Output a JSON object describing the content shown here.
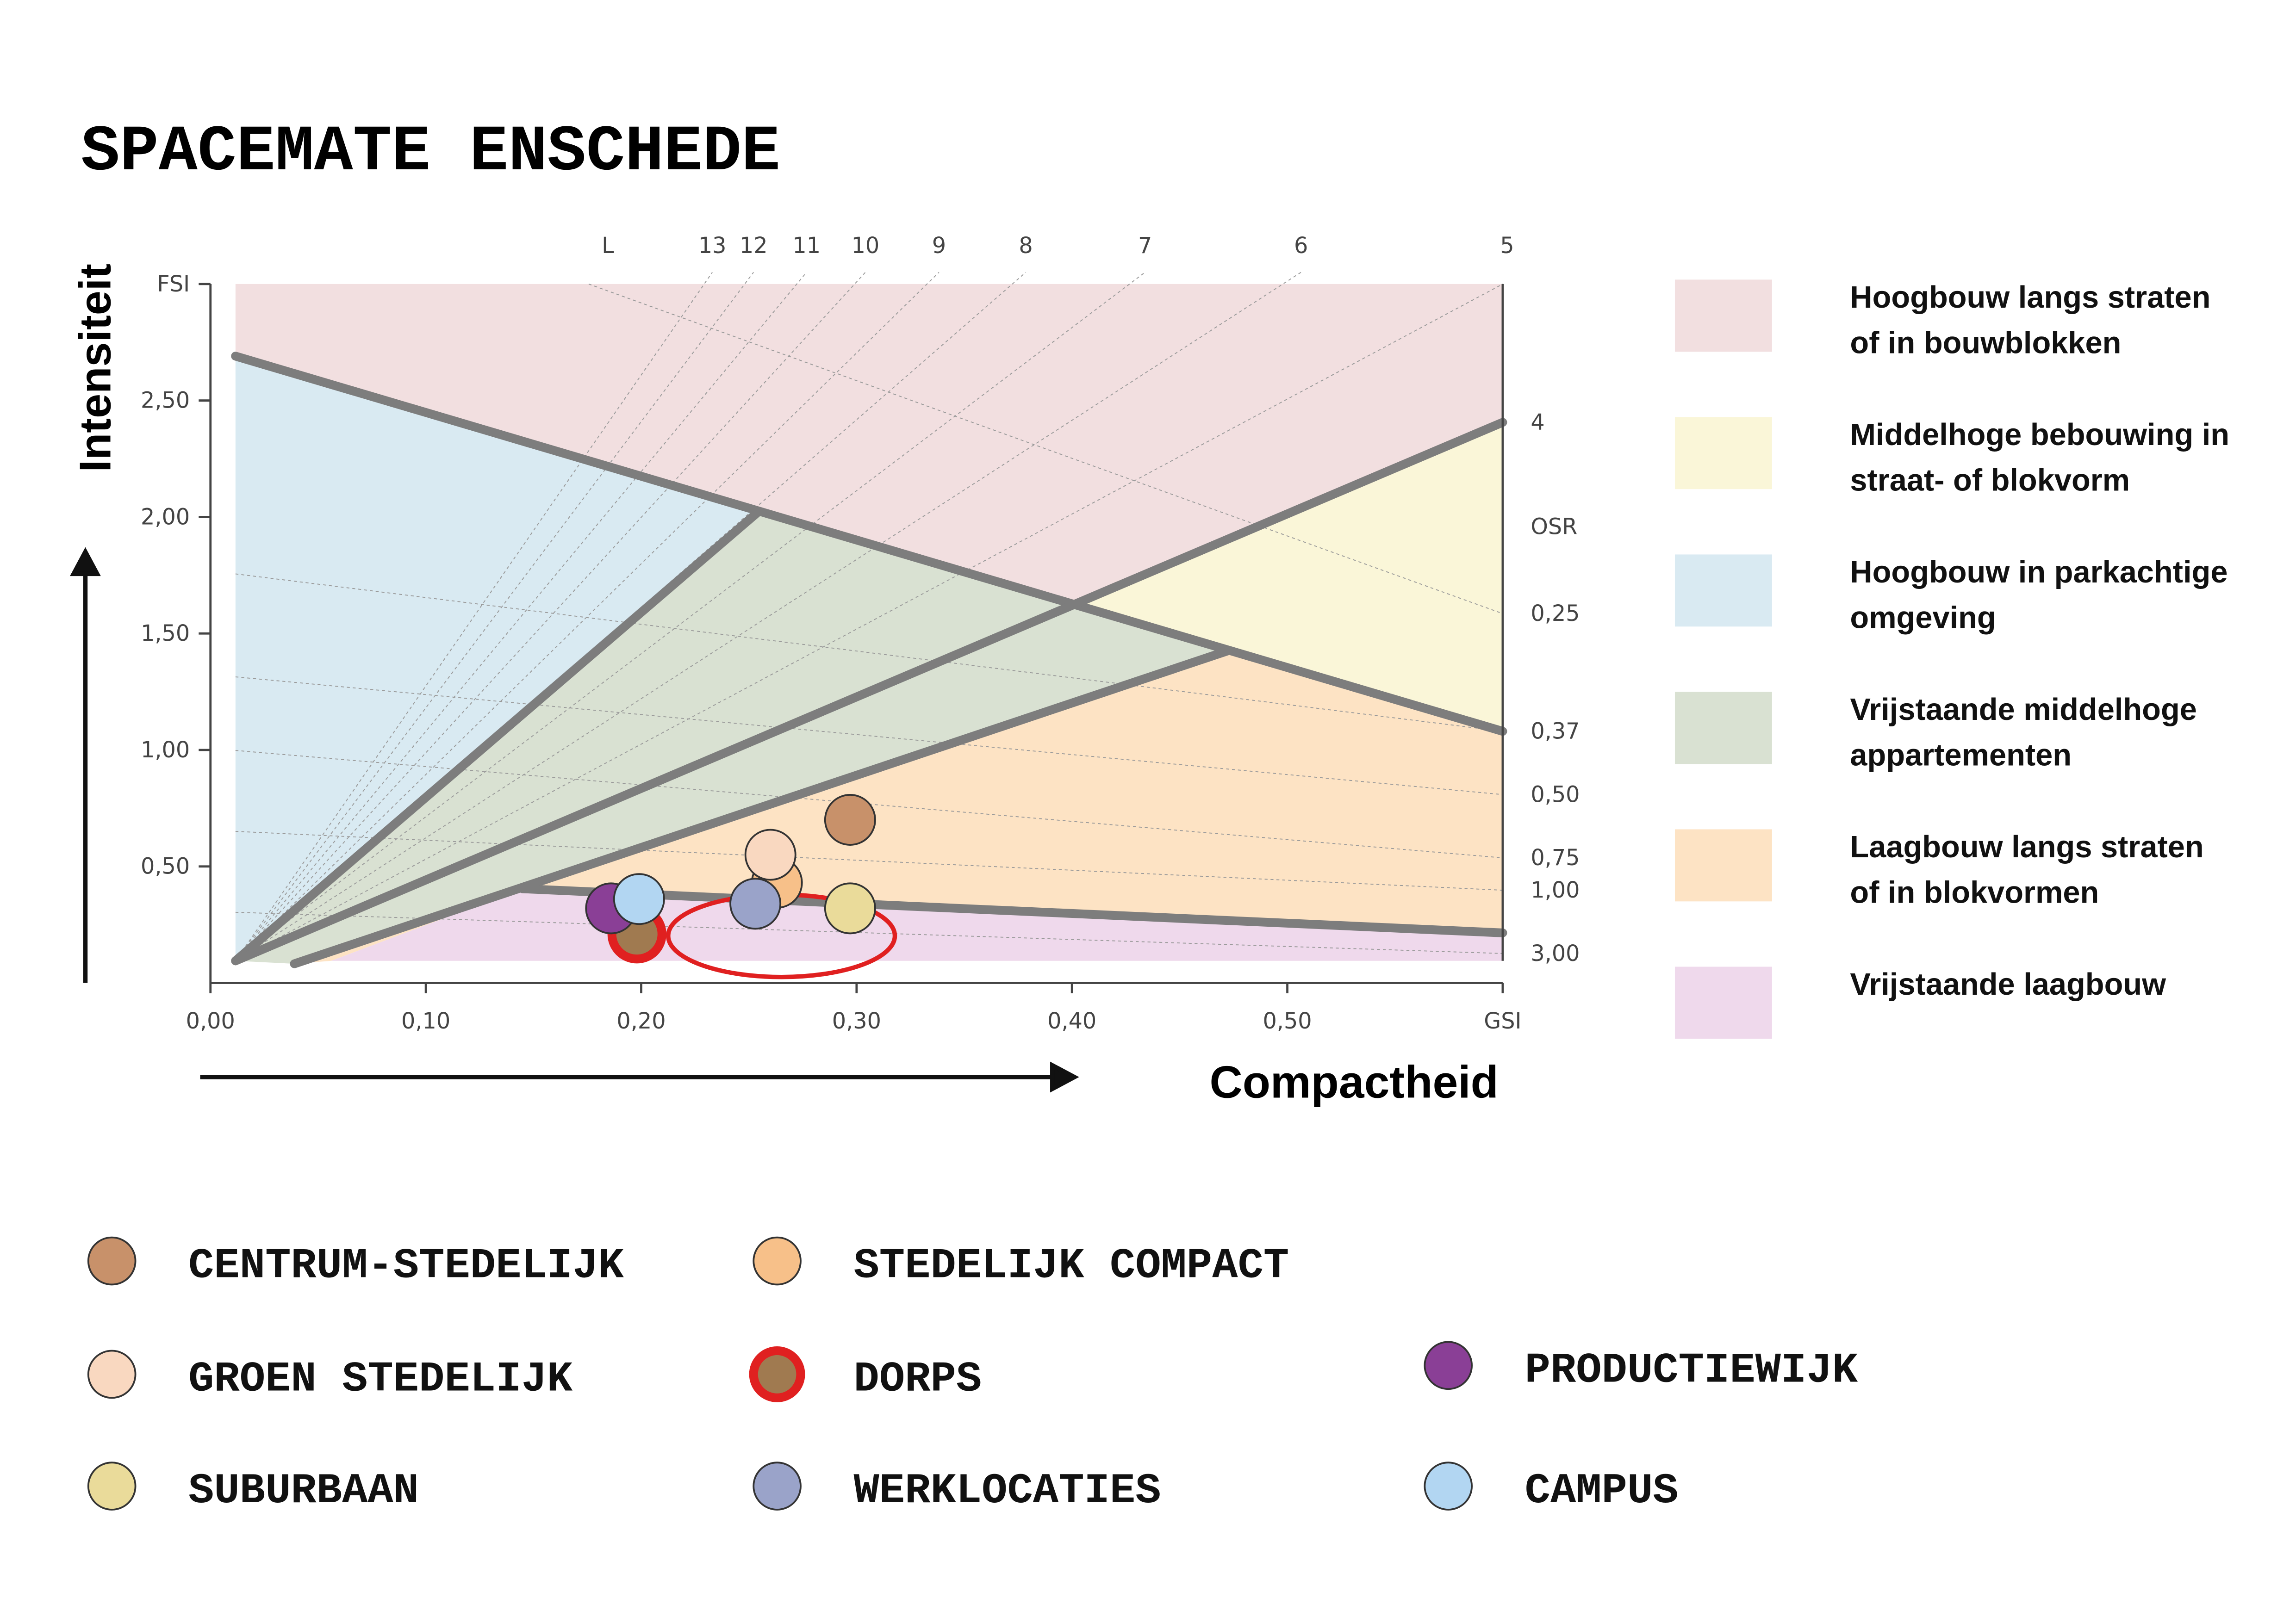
{
  "chart_data": {
    "type": "scatter",
    "title": "SPACEMATE ENSCHEDE",
    "xlabel": "Compactheid",
    "ylabel": "Intensiteit",
    "xlim": [
      0,
      0.6
    ],
    "ylim": [
      0,
      3
    ],
    "xticks": [
      {
        "value": 0,
        "label": "0,00"
      },
      {
        "value": 0.1,
        "label": "0,10"
      },
      {
        "value": 0.2,
        "label": "0,20"
      },
      {
        "value": 0.3,
        "label": "0,30"
      },
      {
        "value": 0.4,
        "label": "0,40"
      },
      {
        "value": 0.5,
        "label": "0,50"
      },
      {
        "value": 0.6,
        "label": "GSI"
      }
    ],
    "yticks": [
      {
        "value": 0.5,
        "label": "0,50"
      },
      {
        "value": 1,
        "label": "1,00"
      },
      {
        "value": 1.5,
        "label": "1,50"
      },
      {
        "value": 2,
        "label": "2,00"
      },
      {
        "value": 2.5,
        "label": "2,50"
      },
      {
        "value": 3,
        "label": "FSI"
      }
    ],
    "top_labels": [
      "L",
      "13",
      "12",
      "11",
      "10",
      "9",
      "8",
      "7",
      "6",
      "5"
    ],
    "right_labels": [
      "4",
      "OSR",
      "0,25",
      "0,37",
      "0,50",
      "0,75",
      "1,00",
      "3,00"
    ],
    "zones": [
      {
        "lines": [
          "Hoogbouw langs straten",
          "of in bouwblokken"
        ],
        "color": "#f2dfe0"
      },
      {
        "lines": [
          "Middelhoge bebouwing in",
          "straat- of blokvorm"
        ],
        "color": "#faf6d8"
      },
      {
        "lines": [
          "Hoogbouw in parkachtige",
          "omgeving"
        ],
        "color": "#d9eaf2"
      },
      {
        "lines": [
          "Vrijstaande middelhoge",
          "appartementen"
        ],
        "color": "#d9e1d2"
      },
      {
        "lines": [
          "Laagbouw langs straten",
          "of in blokvormen"
        ],
        "color": "#fde3c4"
      },
      {
        "lines": [
          "Vrijstaande laagbouw"
        ],
        "color": "#efd9ec"
      }
    ],
    "series": [
      {
        "name": "CENTRUM-STEDELIJK",
        "color": "#c8916a",
        "x": [
          0.297
        ],
        "values": [
          0.7
        ]
      },
      {
        "name": "STEDELIJK COMPACT",
        "color": "#f7c089",
        "x": [
          0.263
        ],
        "values": [
          0.43
        ]
      },
      {
        "name": "GROEN STEDELIJK",
        "color": "#f9d8c0",
        "x": [
          0.26
        ],
        "values": [
          0.55
        ]
      },
      {
        "name": "DORPS",
        "color": "#a07a50",
        "edge_color": "#e02020",
        "x": [
          0.198
        ],
        "values": [
          0.21
        ]
      },
      {
        "name": "PRODUCTIEWIJK",
        "color": "#8a3f96",
        "x": [
          0.186
        ],
        "values": [
          0.32
        ]
      },
      {
        "name": "SUBURBAAN",
        "color": "#eadb9a",
        "x": [
          0.297
        ],
        "values": [
          0.32
        ]
      },
      {
        "name": "WERKLOCATIES",
        "color": "#9aa3c9",
        "x": [
          0.253
        ],
        "values": [
          0.34
        ]
      },
      {
        "name": "CAMPUS",
        "color": "#b2d6f2",
        "x": [
          0.199
        ],
        "values": [
          0.36
        ]
      }
    ]
  }
}
